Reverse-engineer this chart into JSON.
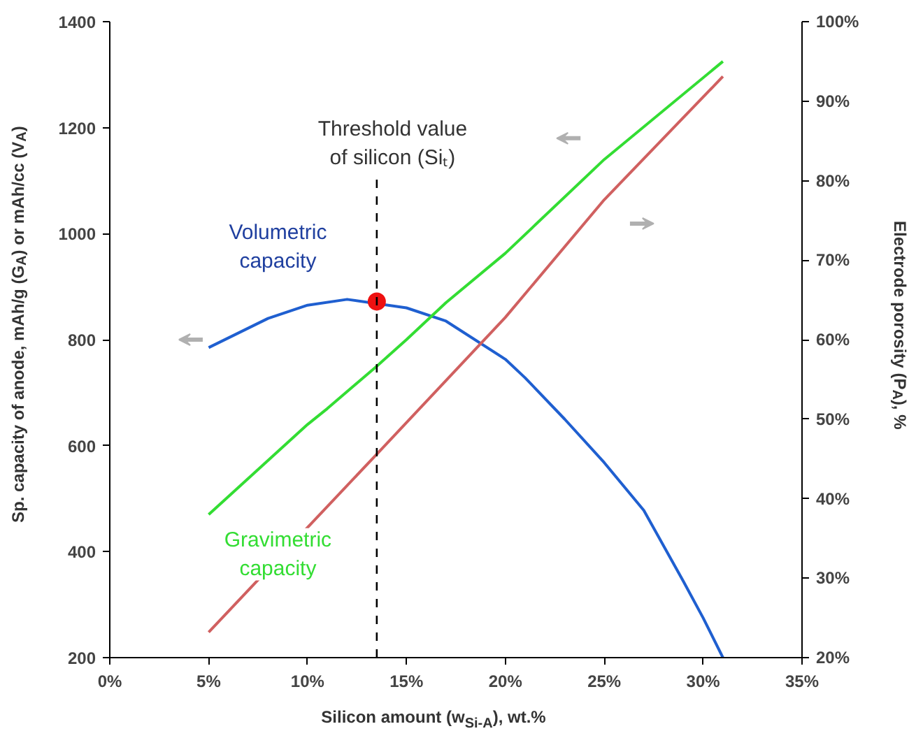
{
  "chart_data": {
    "type": "line",
    "xlabel": "Silicon amount (w$_{Si-A}$), wt.%",
    "ylabel": "Sp. capacity of anode, mAh/g (G$_{A}$) or mAh/cc (V$_{A}$)",
    "y2label": "Electrode porosity  (P$_{A}$), %",
    "xlim": [
      0,
      35
    ],
    "xticks": [
      {
        "value": 0,
        "label": "0%"
      },
      {
        "value": 5,
        "label": "5%"
      },
      {
        "value": 10,
        "label": "10%"
      },
      {
        "value": 15,
        "label": "15%"
      },
      {
        "value": 20,
        "label": "20%"
      },
      {
        "value": 25,
        "label": "25%"
      },
      {
        "value": 30,
        "label": "30%"
      },
      {
        "value": 35,
        "label": "35%"
      }
    ],
    "ylim": [
      200,
      1400
    ],
    "yticks": [
      200,
      400,
      600,
      800,
      1000,
      1200,
      1400
    ],
    "y2lim": [
      20,
      100
    ],
    "y2ticks": [
      {
        "value": 20,
        "label": "20%"
      },
      {
        "value": 30,
        "label": "30%"
      },
      {
        "value": 40,
        "label": "40%"
      },
      {
        "value": 50,
        "label": "50%"
      },
      {
        "value": 60,
        "label": "60%"
      },
      {
        "value": 70,
        "label": "70%"
      },
      {
        "value": 80,
        "label": "80%"
      },
      {
        "value": 90,
        "label": "90%"
      },
      {
        "value": 100,
        "label": "100%"
      }
    ],
    "grid": false,
    "marker": "none",
    "line_style": "solid",
    "series": [
      {
        "name": "Volumetric capacity",
        "color": "#1f5fd0",
        "x": [
          5,
          8,
          10,
          12,
          15,
          17,
          20,
          21,
          23,
          25,
          27,
          29,
          30,
          31
        ],
        "values": [
          785,
          840,
          865,
          876,
          860,
          835,
          763,
          728,
          650,
          568,
          478,
          344,
          275,
          200
        ]
      },
      {
        "name": "Gravimetric capacity",
        "color": "#33dd33",
        "x": [
          5,
          10,
          11,
          13.5,
          15,
          17,
          20,
          25,
          31
        ],
        "values": [
          470,
          640,
          670,
          750,
          800,
          870,
          963,
          1140,
          1325
        ]
      },
      {
        "color": "#d06060",
        "axis": "y2",
        "x": [
          5,
          13.5,
          20,
          25,
          31
        ],
        "values": [
          23.2,
          45.6,
          62.8,
          77.6,
          93.1
        ]
      },
      {
        "type": "scatter",
        "marker": "circle",
        "color": "#ee1111",
        "x": [
          13.5
        ],
        "values": [
          872
        ]
      }
    ],
    "ref_lines": [
      {
        "axis": "x",
        "value": 13.5,
        "label": "Threshold value\nof silicon (Siₜ)",
        "color": "#000000",
        "line_style": "dashed"
      }
    ]
  }
}
